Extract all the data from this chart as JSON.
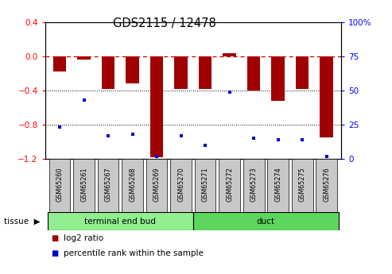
{
  "title": "GDS2115 / 12478",
  "samples": [
    "GSM65260",
    "GSM65261",
    "GSM65267",
    "GSM65268",
    "GSM65269",
    "GSM65270",
    "GSM65271",
    "GSM65272",
    "GSM65273",
    "GSM65274",
    "GSM65275",
    "GSM65276"
  ],
  "log2_ratio": [
    -0.18,
    -0.04,
    -0.38,
    -0.32,
    -1.18,
    -0.38,
    -0.38,
    0.03,
    -0.4,
    -0.52,
    -0.38,
    -0.95
  ],
  "percentile_rank": [
    23,
    43,
    17,
    18,
    2,
    17,
    10,
    49,
    15,
    14,
    14,
    2
  ],
  "tissue_groups": [
    {
      "label": "terminal end bud",
      "start": 0,
      "end": 6,
      "color": "#90EE90"
    },
    {
      "label": "duct",
      "start": 6,
      "end": 12,
      "color": "#5CD65C"
    }
  ],
  "bar_color": "#A00000",
  "dot_color": "#0000CC",
  "ylim_left": [
    -1.2,
    0.4
  ],
  "ylim_right": [
    0,
    100
  ],
  "yticks_left": [
    0.4,
    0.0,
    -0.4,
    -0.8,
    -1.2
  ],
  "yticks_right": [
    100,
    75,
    50,
    25,
    0
  ],
  "hline_y": 0.0,
  "dotted_lines": [
    -0.4,
    -0.8
  ],
  "gray_box_color": "#C8C8C8",
  "legend_log2": "log2 ratio",
  "legend_pct": "percentile rank within the sample",
  "tissue_label": "tissue"
}
